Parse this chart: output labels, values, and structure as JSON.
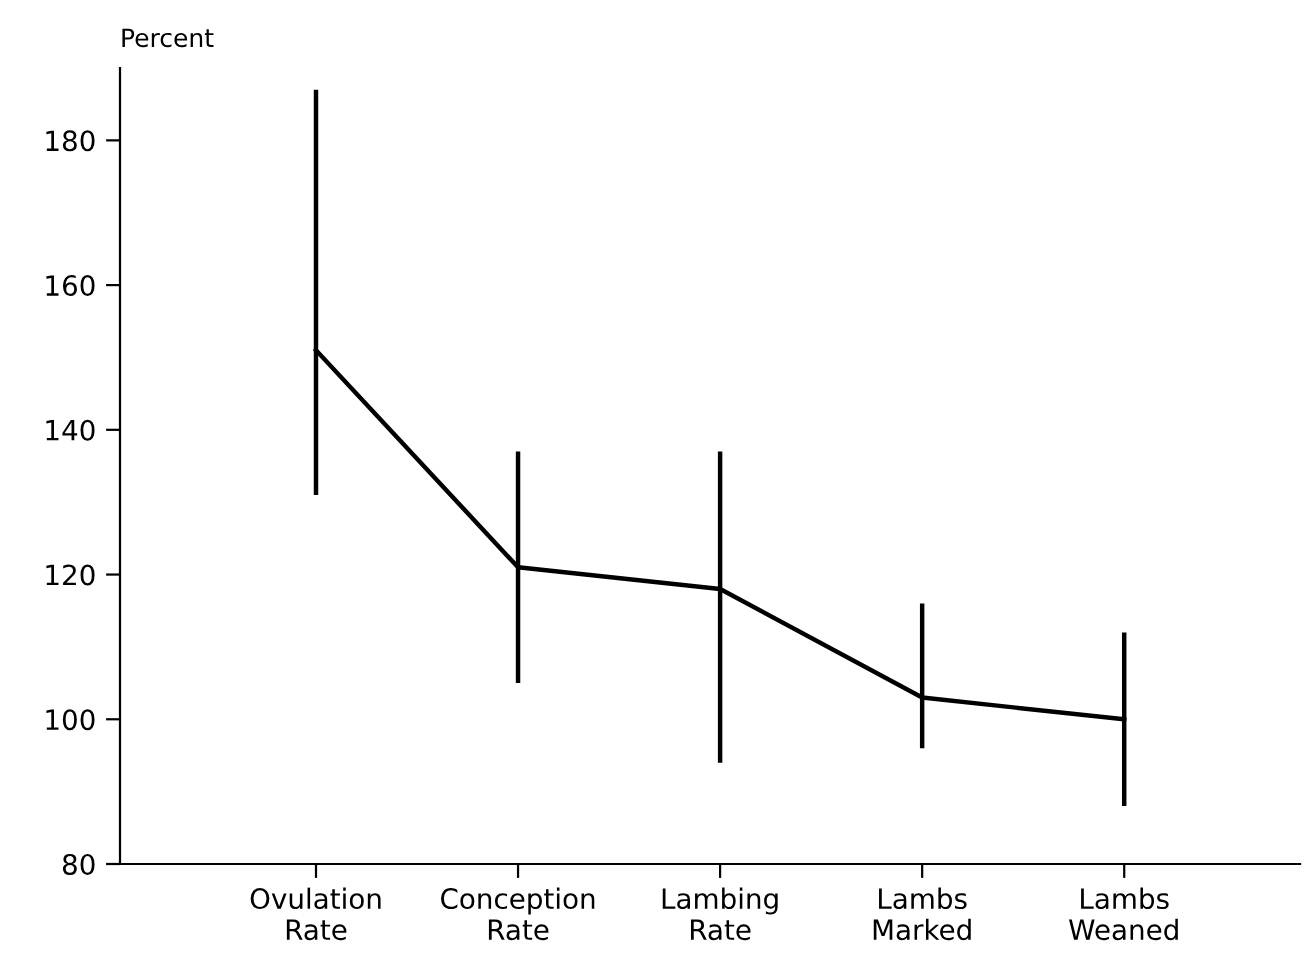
{
  "chart_data": {
    "type": "line",
    "ylabel": "Percent",
    "categories": [
      "Ovulation\nRate",
      "Conception\nRate",
      "Lambing\nRate",
      "Lambs\nMarked",
      "Lambs\nWeaned"
    ],
    "values": [
      151,
      121,
      118,
      103,
      100
    ],
    "errors": [
      [
        131,
        187
      ],
      [
        105,
        137
      ],
      [
        94,
        137
      ],
      [
        96,
        116
      ],
      [
        88,
        112
      ]
    ],
    "color": "#000000",
    "marker": "none",
    "line_style": "solid",
    "grid": false,
    "legend": false,
    "ylim": [
      80,
      190
    ],
    "yticks": [
      80,
      100,
      120,
      140,
      160,
      180
    ]
  }
}
